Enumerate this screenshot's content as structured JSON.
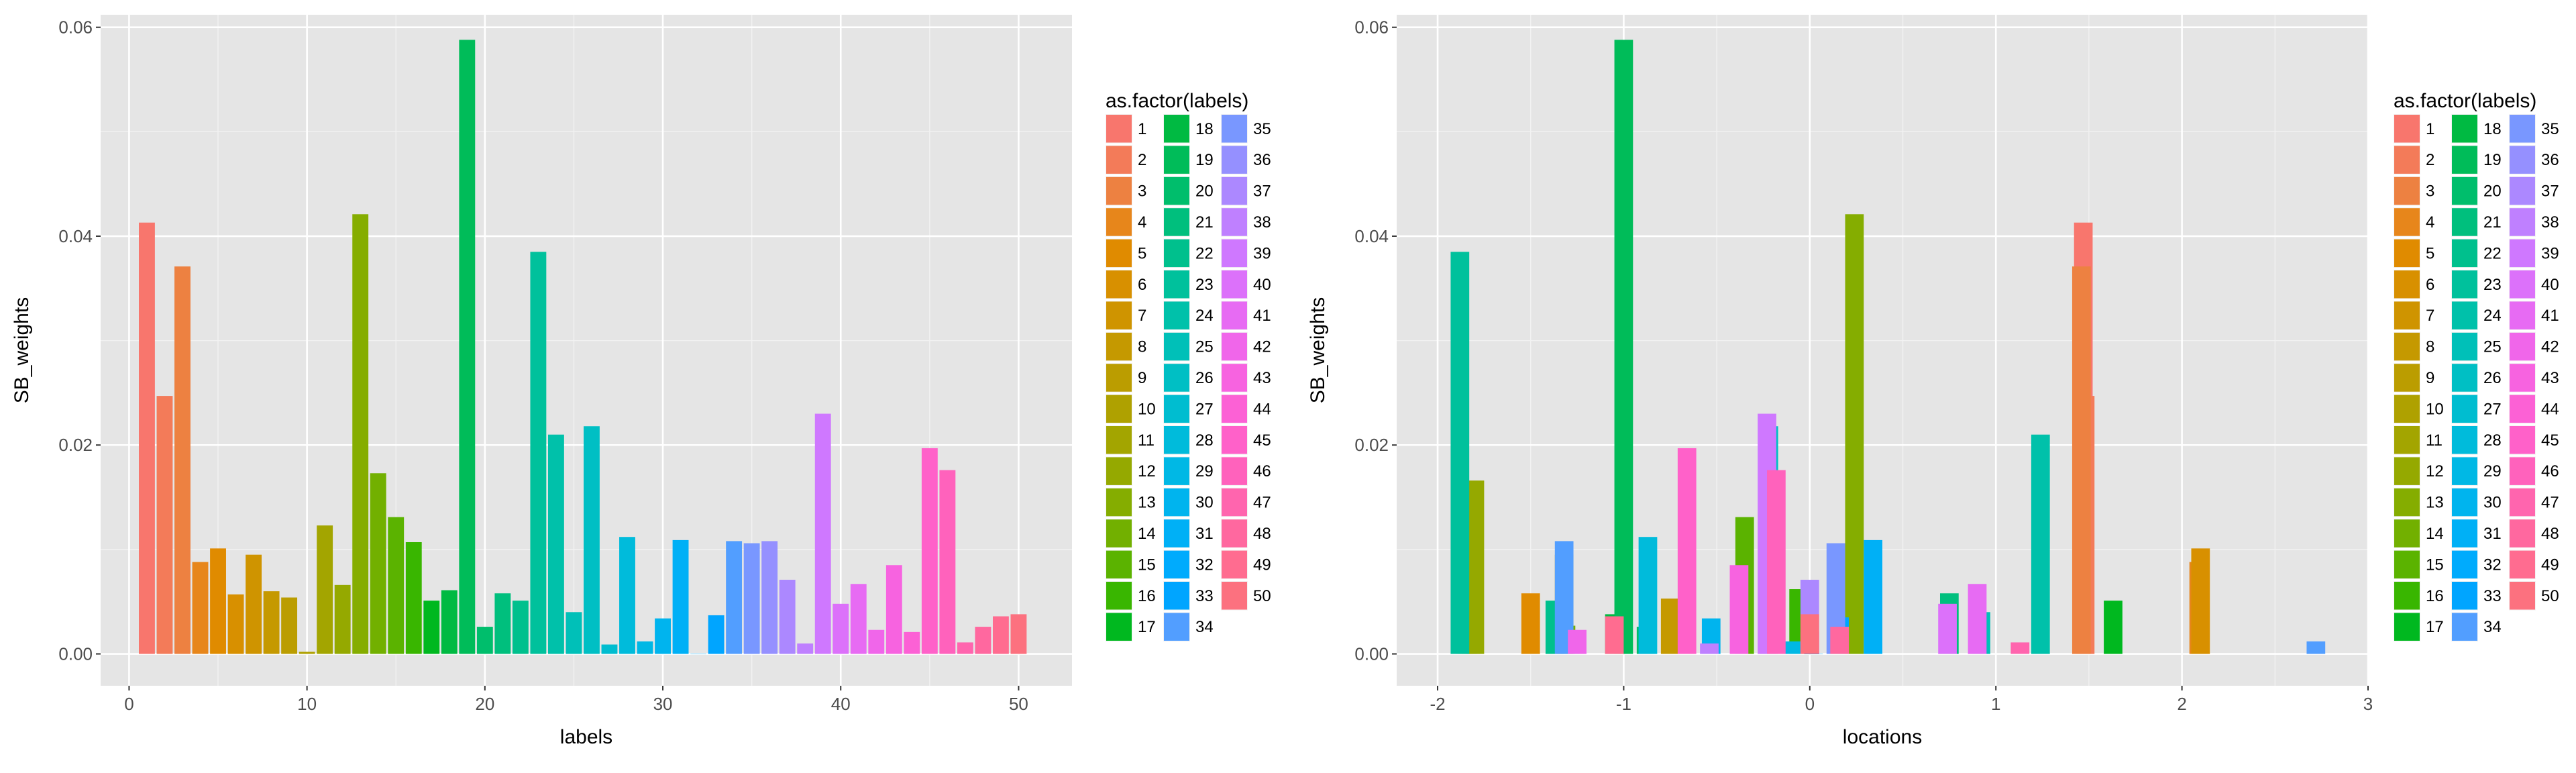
{
  "colors": {
    "panel_bg": "#e5e5e5",
    "grid_major": "#ffffff",
    "grid_minor": "#f2f2f2",
    "tick_text": "#4d4d4d"
  },
  "chart_data": [
    {
      "type": "bar",
      "xlabel": "labels",
      "ylabel": "SB_weights",
      "xlim": [
        -1.6,
        53.0
      ],
      "ylim": [
        -0.00305,
        0.0612
      ],
      "xticks": [
        0,
        10,
        20,
        30,
        40,
        50
      ],
      "yticks": [
        0.0,
        0.02,
        0.04,
        0.06
      ],
      "ytick_labels": [
        "0.00",
        "0.02",
        "0.04",
        "0.06"
      ],
      "bar_width": 0.9,
      "x": [
        1,
        2,
        3,
        4,
        5,
        6,
        7,
        8,
        9,
        10,
        11,
        12,
        13,
        14,
        15,
        16,
        17,
        18,
        19,
        20,
        21,
        22,
        23,
        24,
        25,
        26,
        27,
        28,
        29,
        30,
        31,
        32,
        33,
        34,
        35,
        36,
        37,
        38,
        39,
        40,
        41,
        42,
        43,
        44,
        45,
        46,
        47,
        48,
        49,
        50
      ],
      "values": [
        0.0413,
        0.0247,
        0.0371,
        0.0088,
        0.0101,
        0.0057,
        0.0095,
        0.006,
        0.0054,
        0.0002,
        0.0123,
        0.0066,
        0.0421,
        0.0173,
        0.0131,
        0.0107,
        0.0051,
        0.0061,
        0.0588,
        0.0026,
        0.0058,
        0.0051,
        0.0385,
        0.021,
        0.004,
        0.0218,
        0.0009,
        0.0112,
        0.0012,
        0.0034,
        0.0109,
        0.0,
        0.0037,
        0.0108,
        0.0106,
        0.0108,
        0.0071,
        0.001,
        0.023,
        0.0048,
        0.0067,
        0.0023,
        0.0085,
        0.0021,
        0.0197,
        0.0176,
        0.0011,
        0.0026,
        0.0036,
        0.0038
      ],
      "legend": {
        "title": "as.factor(labels)",
        "position": "right",
        "labels": [
          "1",
          "2",
          "3",
          "4",
          "5",
          "6",
          "7",
          "8",
          "9",
          "10",
          "11",
          "12",
          "13",
          "14",
          "15",
          "16",
          "17",
          "18",
          "19",
          "20",
          "21",
          "22",
          "23",
          "24",
          "25",
          "26",
          "27",
          "28",
          "29",
          "30",
          "31",
          "32",
          "33",
          "34",
          "35",
          "36",
          "37",
          "38",
          "39",
          "40",
          "41",
          "42",
          "43",
          "44",
          "45",
          "46",
          "47",
          "48",
          "49",
          "50"
        ]
      }
    },
    {
      "type": "bar",
      "xlabel": "locations",
      "ylabel": "SB_weights",
      "xlim": [
        -2.22,
        3.0
      ],
      "ylim": [
        -0.00305,
        0.0612
      ],
      "xticks": [
        -2,
        -1,
        0,
        1,
        2,
        3
      ],
      "yticks": [
        0.0,
        0.02,
        0.04,
        0.06
      ],
      "ytick_labels": [
        "0.00",
        "0.02",
        "0.04",
        "0.06"
      ],
      "bar_width": 0.1,
      "x": [
        1.47,
        1.48,
        1.46,
        2.09,
        -1.5,
        2.1,
        -1.32,
        -0.75,
        -1.82,
        -1.84,
        -1.85,
        -1.8,
        0.24,
        -1.31,
        -0.35,
        -0.06,
        1.63,
        -1.05,
        -1.0,
        -0.88,
        0.75,
        -1.37,
        -1.88,
        1.24,
        0.92,
        -0.22,
        -1.29,
        -0.87,
        -0.09,
        -0.53,
        0.34,
        0.02,
        0.16,
        -1.32,
        0.14,
        -0.22,
        0.0,
        -0.54,
        -0.23,
        0.74,
        0.9,
        -1.25,
        -0.38,
        0.0,
        -0.66,
        -0.18,
        1.13,
        0.16,
        -1.05,
        0.0
      ],
      "values": [
        0.0413,
        0.0247,
        0.0371,
        0.0088,
        0.0058,
        0.0101,
        0.0095,
        0.0053,
        0.006,
        0.0002,
        0.0123,
        0.0166,
        0.0421,
        0.0027,
        0.0131,
        0.0062,
        0.0051,
        0.0038,
        0.0588,
        0.0026,
        0.0058,
        0.0051,
        0.0385,
        0.021,
        0.004,
        0.0218,
        0.0009,
        0.0112,
        0.0012,
        0.0034,
        0.0109,
        0.0,
        0.0035,
        0.0108,
        0.0106,
        0.0108,
        0.0071,
        0.001,
        0.023,
        0.0048,
        0.0067,
        0.0023,
        0.0085,
        0.0021,
        0.0197,
        0.0176,
        0.0011,
        0.0026,
        0.0036,
        0.0038
      ],
      "annotations": [
        {
          "x": 2.72,
          "y": 0.0012,
          "series": "34"
        }
      ],
      "legend": {
        "title": "as.factor(labels)",
        "position": "right",
        "labels": [
          "1",
          "2",
          "3",
          "4",
          "5",
          "6",
          "7",
          "8",
          "9",
          "10",
          "11",
          "12",
          "13",
          "14",
          "15",
          "16",
          "17",
          "18",
          "19",
          "20",
          "21",
          "22",
          "23",
          "24",
          "25",
          "26",
          "27",
          "28",
          "29",
          "30",
          "31",
          "32",
          "33",
          "34",
          "35",
          "36",
          "37",
          "38",
          "39",
          "40",
          "41",
          "42",
          "43",
          "44",
          "45",
          "46",
          "47",
          "48",
          "49",
          "50"
        ]
      }
    }
  ]
}
